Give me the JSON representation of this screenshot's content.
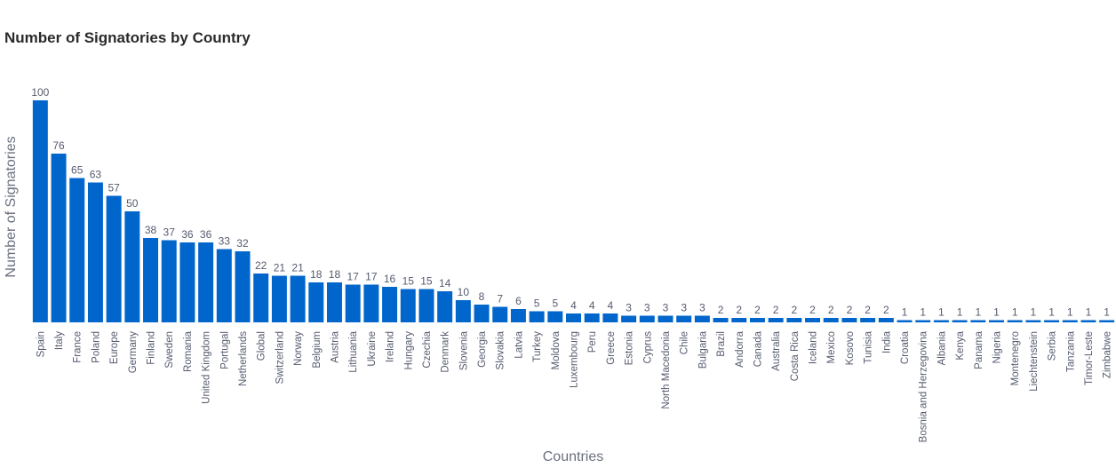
{
  "chart_data": {
    "type": "bar",
    "title": "Number of Signatories by Country",
    "xlabel": "Countries",
    "ylabel": "Number of Signatories",
    "ylim": [
      0,
      100
    ],
    "grid": false,
    "legend": "none",
    "bar_color": "#0066cc",
    "categories": [
      "Spain",
      "Italy",
      "France",
      "Poland",
      "Europe",
      "Germany",
      "Finland",
      "Sweden",
      "Romania",
      "United Kingdom",
      "Portugal",
      "Netherlands",
      "Global",
      "Switzerland",
      "Norway",
      "Belgium",
      "Austria",
      "Lithuania",
      "Ukraine",
      "Ireland",
      "Hungary",
      "Czechia",
      "Denmark",
      "Slovenia",
      "Georgia",
      "Slovakia",
      "Latvia",
      "Turkey",
      "Moldova",
      "Luxembourg",
      "Peru",
      "Greece",
      "Estonia",
      "Cyprus",
      "North Macedonia",
      "Chile",
      "Bulgaria",
      "Brazil",
      "Andorra",
      "Canada",
      "Australia",
      "Costa Rica",
      "Iceland",
      "Mexico",
      "Kosovo",
      "Tunisia",
      "India",
      "Croatia",
      "Bosnia and Herzegovina",
      "Albania",
      "Kenya",
      "Panama",
      "Nigeria",
      "Montenegro",
      "Liechtenstein",
      "Serbia",
      "Tanzania",
      "Timor-Leste",
      "Zimbabwe"
    ],
    "values": [
      100,
      76,
      65,
      63,
      57,
      50,
      38,
      37,
      36,
      36,
      33,
      32,
      22,
      21,
      21,
      18,
      18,
      17,
      17,
      16,
      15,
      15,
      14,
      10,
      8,
      7,
      6,
      5,
      5,
      4,
      4,
      4,
      3,
      3,
      3,
      3,
      3,
      2,
      2,
      2,
      2,
      2,
      2,
      2,
      2,
      2,
      2,
      1,
      1,
      1,
      1,
      1,
      1,
      1,
      1,
      1,
      1,
      1,
      1
    ]
  }
}
